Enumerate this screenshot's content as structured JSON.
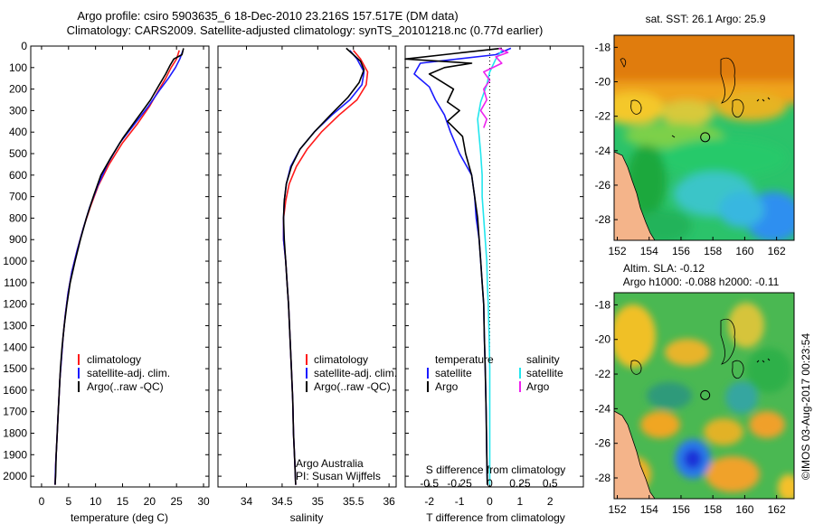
{
  "header": {
    "title_line1": "Argo profile: csiro 5903635_6 18-Dec-2010 23.216S 157.517E (DM data)",
    "title_line2": "Climatology: CARS2009. Satellite-adjusted climatology: synTS_20101218.nc (0.77d earlier)"
  },
  "colors": {
    "climatology": "#ff1a1a",
    "satellite": "#1a1aff",
    "argo": "#000000",
    "sal_satellite": "#22e6ee",
    "sal_argo": "#ee22ee",
    "land": "#f4b48a"
  },
  "chart_data": [
    {
      "id": "temperature",
      "type": "line",
      "xlabel": "temperature (deg C)",
      "xlim": [
        -2,
        31
      ],
      "xticks": [
        0,
        5,
        10,
        15,
        20,
        25,
        30
      ],
      "ylabel": "",
      "ylim": [
        0,
        2050
      ],
      "yticks": [
        0,
        100,
        200,
        300,
        400,
        500,
        600,
        700,
        800,
        900,
        1000,
        1100,
        1200,
        1300,
        1400,
        1500,
        1600,
        1700,
        1800,
        1900,
        2000
      ],
      "legend": [
        "climatology",
        "satellite-adj. clim.",
        "Argo(..raw -QC)"
      ],
      "series": [
        {
          "name": "climatology",
          "points": [
            [
              25.5,
              20
            ],
            [
              25.0,
              60
            ],
            [
              24.0,
              100
            ],
            [
              23.0,
              150
            ],
            [
              21.8,
              200
            ],
            [
              20.0,
              280
            ],
            [
              17.8,
              360
            ],
            [
              15.0,
              450
            ],
            [
              12.5,
              550
            ],
            [
              10.5,
              650
            ],
            [
              9.0,
              750
            ],
            [
              7.7,
              850
            ],
            [
              6.6,
              950
            ],
            [
              5.6,
              1050
            ],
            [
              4.9,
              1150
            ],
            [
              4.4,
              1250
            ],
            [
              4.0,
              1350
            ],
            [
              3.7,
              1450
            ],
            [
              3.4,
              1550
            ],
            [
              3.2,
              1650
            ],
            [
              3.0,
              1750
            ],
            [
              2.8,
              1850
            ],
            [
              2.6,
              1950
            ],
            [
              2.5,
              2040
            ]
          ]
        },
        {
          "name": "satellite",
          "points": [
            [
              26.2,
              20
            ],
            [
              25.6,
              60
            ],
            [
              24.8,
              100
            ],
            [
              23.5,
              150
            ],
            [
              22.0,
              200
            ],
            [
              19.8,
              280
            ],
            [
              17.3,
              360
            ],
            [
              14.5,
              450
            ],
            [
              12.2,
              550
            ],
            [
              10.4,
              650
            ],
            [
              8.9,
              750
            ],
            [
              7.7,
              850
            ],
            [
              6.6,
              950
            ],
            [
              5.6,
              1050
            ],
            [
              4.9,
              1150
            ],
            [
              4.4,
              1250
            ],
            [
              4.0,
              1350
            ],
            [
              3.7,
              1450
            ],
            [
              3.4,
              1550
            ],
            [
              3.2,
              1650
            ],
            [
              3.0,
              1750
            ],
            [
              2.8,
              1850
            ],
            [
              2.6,
              1950
            ],
            [
              2.5,
              2040
            ]
          ]
        },
        {
          "name": "argo",
          "points": [
            [
              26.3,
              10
            ],
            [
              26.0,
              40
            ],
            [
              24.5,
              60
            ],
            [
              23.8,
              90
            ],
            [
              23.0,
              130
            ],
            [
              21.8,
              180
            ],
            [
              20.2,
              250
            ],
            [
              17.6,
              340
            ],
            [
              15.0,
              430
            ],
            [
              12.8,
              520
            ],
            [
              11.0,
              600
            ],
            [
              9.6,
              700
            ],
            [
              8.3,
              800
            ],
            [
              7.2,
              900
            ],
            [
              6.2,
              1000
            ],
            [
              5.3,
              1100
            ],
            [
              4.7,
              1200
            ],
            [
              4.2,
              1300
            ],
            [
              3.8,
              1400
            ],
            [
              3.5,
              1500
            ],
            [
              3.3,
              1600
            ],
            [
              3.1,
              1700
            ],
            [
              2.9,
              1800
            ],
            [
              2.7,
              1900
            ],
            [
              2.6,
              2000
            ],
            [
              2.5,
              2040
            ]
          ]
        }
      ]
    },
    {
      "id": "salinity",
      "type": "line",
      "xlabel": "salinity",
      "xlim": [
        33.6,
        36.1
      ],
      "xticks": [
        34,
        34.5,
        35,
        35.5,
        36
      ],
      "ylim": [
        0,
        2050
      ],
      "legend": [
        "climatology",
        "satellite-adj. clim.",
        "Argo(..raw -QC)"
      ],
      "annotation": [
        "Argo Australia",
        "PI: Susan Wijffels"
      ],
      "series": [
        {
          "name": "climatology",
          "points": [
            [
              35.5,
              20
            ],
            [
              35.6,
              60
            ],
            [
              35.7,
              120
            ],
            [
              35.68,
              180
            ],
            [
              35.55,
              250
            ],
            [
              35.3,
              320
            ],
            [
              35.05,
              400
            ],
            [
              34.85,
              480
            ],
            [
              34.7,
              560
            ],
            [
              34.6,
              640
            ],
            [
              34.55,
              720
            ],
            [
              34.52,
              800
            ],
            [
              34.52,
              900
            ],
            [
              34.55,
              1000
            ],
            [
              34.57,
              1100
            ],
            [
              34.59,
              1200
            ],
            [
              34.61,
              1350
            ],
            [
              34.63,
              1500
            ],
            [
              34.65,
              1650
            ],
            [
              34.66,
              1800
            ],
            [
              34.68,
              1950
            ],
            [
              34.69,
              2040
            ]
          ]
        },
        {
          "name": "satellite",
          "points": [
            [
              35.45,
              20
            ],
            [
              35.55,
              60
            ],
            [
              35.65,
              120
            ],
            [
              35.62,
              180
            ],
            [
              35.45,
              250
            ],
            [
              35.2,
              320
            ],
            [
              34.95,
              400
            ],
            [
              34.75,
              480
            ],
            [
              34.62,
              560
            ],
            [
              34.56,
              640
            ],
            [
              34.53,
              720
            ],
            [
              34.52,
              800
            ],
            [
              34.52,
              900
            ],
            [
              34.55,
              1000
            ],
            [
              34.57,
              1100
            ],
            [
              34.59,
              1200
            ],
            [
              34.61,
              1350
            ],
            [
              34.63,
              1500
            ],
            [
              34.65,
              1650
            ],
            [
              34.66,
              1800
            ],
            [
              34.68,
              1950
            ],
            [
              34.69,
              2040
            ]
          ]
        },
        {
          "name": "argo",
          "points": [
            [
              35.4,
              10
            ],
            [
              35.5,
              40
            ],
            [
              35.6,
              70
            ],
            [
              35.65,
              110
            ],
            [
              35.58,
              170
            ],
            [
              35.42,
              240
            ],
            [
              35.18,
              320
            ],
            [
              34.95,
              400
            ],
            [
              34.75,
              480
            ],
            [
              34.63,
              560
            ],
            [
              34.56,
              640
            ],
            [
              34.53,
              720
            ],
            [
              34.52,
              800
            ],
            [
              34.53,
              900
            ],
            [
              34.55,
              1000
            ],
            [
              34.57,
              1100
            ],
            [
              34.59,
              1200
            ],
            [
              34.61,
              1350
            ],
            [
              34.63,
              1500
            ],
            [
              34.65,
              1650
            ],
            [
              34.66,
              1800
            ],
            [
              34.68,
              1950
            ],
            [
              34.69,
              2040
            ]
          ]
        }
      ]
    },
    {
      "id": "difference",
      "type": "line",
      "xlabel": "T difference from climatology",
      "xlabel_top": "S difference from climatology",
      "xlim": [
        -2.8,
        3.1
      ],
      "xticks": [
        -2,
        -1,
        0,
        1,
        2
      ],
      "sticks_labels": [
        "-0.5",
        "-0.25",
        "0",
        "0.25",
        "0.5"
      ],
      "sticks_pos": [
        -2,
        -1,
        0,
        1,
        2
      ],
      "ylim": [
        0,
        2050
      ],
      "legend_t_title": "temperature",
      "legend_s_title": "salinity",
      "legend": [
        "satellite",
        "Argo",
        "satellite",
        "Argo"
      ],
      "series": [
        {
          "name": "T satellite",
          "points": [
            [
              0.7,
              10
            ],
            [
              0.2,
              40
            ],
            [
              -2.3,
              80
            ],
            [
              -2.5,
              130
            ],
            [
              -2.0,
              190
            ],
            [
              -1.8,
              250
            ],
            [
              -1.5,
              320
            ],
            [
              -1.3,
              400
            ],
            [
              -1.0,
              500
            ],
            [
              -0.6,
              600
            ],
            [
              -0.5,
              700
            ],
            [
              -0.45,
              800
            ],
            [
              -0.35,
              900
            ],
            [
              -0.3,
              1000
            ],
            [
              -0.25,
              1100
            ],
            [
              -0.2,
              1200
            ],
            [
              -0.18,
              1350
            ],
            [
              -0.15,
              1500
            ],
            [
              -0.12,
              1700
            ],
            [
              -0.1,
              1900
            ],
            [
              -0.08,
              2040
            ]
          ]
        },
        {
          "name": "T argo",
          "points": [
            [
              0.4,
              10
            ],
            [
              -2.8,
              60
            ],
            [
              -0.6,
              80
            ],
            [
              -1.5,
              100
            ],
            [
              -2.0,
              130
            ],
            [
              -1.2,
              200
            ],
            [
              -1.4,
              260
            ],
            [
              -1.0,
              300
            ],
            [
              -1.4,
              350
            ],
            [
              -0.9,
              420
            ],
            [
              -0.8,
              500
            ],
            [
              -0.6,
              600
            ],
            [
              -0.5,
              700
            ],
            [
              -0.4,
              800
            ],
            [
              -0.35,
              900
            ],
            [
              -0.3,
              1000
            ],
            [
              -0.25,
              1100
            ],
            [
              -0.2,
              1200
            ],
            [
              -0.18,
              1350
            ],
            [
              -0.15,
              1500
            ],
            [
              -0.12,
              1700
            ],
            [
              -0.1,
              1900
            ],
            [
              -0.08,
              2040
            ]
          ]
        },
        {
          "name": "S satellite",
          "points": [
            [
              0.4,
              20
            ],
            [
              0.2,
              60
            ],
            [
              0.0,
              120
            ],
            [
              -0.1,
              180
            ],
            [
              -0.3,
              260
            ],
            [
              -0.4,
              340
            ],
            [
              -0.35,
              420
            ],
            [
              -0.3,
              500
            ],
            [
              -0.25,
              600
            ],
            [
              -0.25,
              700
            ],
            [
              -0.2,
              800
            ],
            [
              -0.15,
              900
            ],
            [
              -0.1,
              1000
            ],
            [
              -0.08,
              1100
            ],
            [
              -0.05,
              1200
            ],
            [
              -0.02,
              1350
            ],
            [
              0.0,
              1500
            ],
            [
              0.0,
              1700
            ],
            [
              0.0,
              1900
            ],
            [
              0.0,
              2040
            ]
          ]
        },
        {
          "name": "S argo",
          "points": [
            [
              0.3,
              10
            ],
            [
              0.6,
              30
            ],
            [
              0.2,
              50
            ],
            [
              0.4,
              80
            ],
            [
              -0.2,
              120
            ],
            [
              0.0,
              160
            ],
            [
              -0.2,
              200
            ],
            [
              -0.1,
              250
            ],
            [
              -0.3,
              300
            ],
            [
              -0.1,
              340
            ],
            [
              -0.2,
              380
            ]
          ]
        }
      ]
    }
  ],
  "maps": {
    "top_title": "sat. SST: 26.1  Argo: 25.9",
    "bottom_title_line1": "Altim. SLA: -0.12",
    "bottom_title_line2": "Argo h1000: -0.088  h2000: -0.11",
    "xticks": [
      "152",
      "154",
      "156",
      "158",
      "160",
      "162"
    ],
    "yticks": [
      "-18",
      "-20",
      "-22",
      "-24",
      "-26",
      "-28"
    ],
    "float_lon": 157.517,
    "float_lat": -23.216
  },
  "footer": {
    "stamp": "©IMOS 03-Aug-2017 00:23:54"
  }
}
